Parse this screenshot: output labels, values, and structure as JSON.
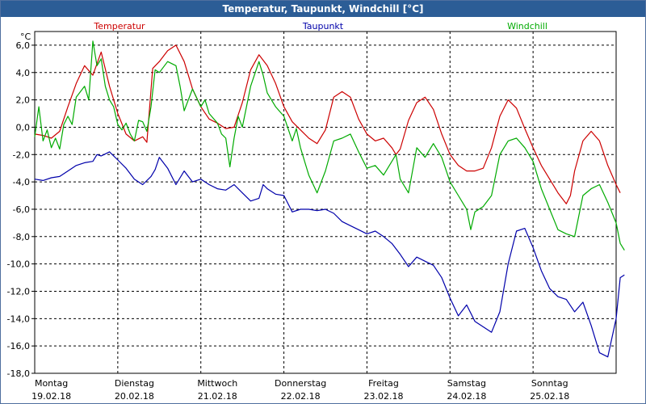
{
  "window": {
    "title": "Temperatur, Taupunkt, Windchill [°C]"
  },
  "chart_data": {
    "type": "line",
    "title": "Temperatur, Taupunkt, Windchill [°C]",
    "ylabel": "°C",
    "ylim": [
      -18,
      7
    ],
    "yticks": [
      -18,
      -16,
      -14,
      -12,
      -10,
      -8,
      -6,
      -4,
      -2,
      0,
      2,
      4,
      6
    ],
    "ytick_labels": [
      "-18,0",
      "-16,0",
      "-14,0",
      "-12,0",
      "-10,0",
      "-8,0",
      "-6,0",
      "-4,0",
      "-2,0",
      "0,0",
      "2,0",
      "4,0",
      "6,0"
    ],
    "xlim": [
      0,
      7
    ],
    "days": [
      {
        "day": "Montag",
        "date": "19.02.18"
      },
      {
        "day": "Dienstag",
        "date": "20.02.18"
      },
      {
        "day": "Mittwoch",
        "date": "21.02.18"
      },
      {
        "day": "Donnerstag",
        "date": "22.02.18"
      },
      {
        "day": "Freitag",
        "date": "23.02.18"
      },
      {
        "day": "Samstag",
        "date": "24.02.18"
      },
      {
        "day": "Sonntag",
        "date": "25.02.18"
      }
    ],
    "grid": true,
    "series": [
      {
        "name": "Temperatur",
        "color": "#cc0000",
        "points": [
          [
            0,
            -0.5
          ],
          [
            0.1,
            -0.6
          ],
          [
            0.2,
            -0.8
          ],
          [
            0.3,
            -0.3
          ],
          [
            0.4,
            1.5
          ],
          [
            0.5,
            3.2
          ],
          [
            0.6,
            4.5
          ],
          [
            0.7,
            3.8
          ],
          [
            0.8,
            5.5
          ],
          [
            0.9,
            3.0
          ],
          [
            1.0,
            1.0
          ],
          [
            1.1,
            -0.5
          ],
          [
            1.2,
            -1.0
          ],
          [
            1.3,
            -0.7
          ],
          [
            1.35,
            -1.1
          ],
          [
            1.42,
            4.3
          ],
          [
            1.5,
            4.8
          ],
          [
            1.6,
            5.6
          ],
          [
            1.7,
            6.0
          ],
          [
            1.8,
            4.8
          ],
          [
            1.9,
            2.8
          ],
          [
            2.0,
            1.5
          ],
          [
            2.1,
            0.6
          ],
          [
            2.2,
            0.3
          ],
          [
            2.25,
            0.1
          ],
          [
            2.3,
            -0.1
          ],
          [
            2.4,
            0.0
          ],
          [
            2.5,
            1.8
          ],
          [
            2.6,
            4.2
          ],
          [
            2.7,
            5.3
          ],
          [
            2.8,
            4.5
          ],
          [
            2.9,
            3.2
          ],
          [
            3.0,
            1.5
          ],
          [
            3.1,
            0.4
          ],
          [
            3.2,
            -0.2
          ],
          [
            3.3,
            -0.8
          ],
          [
            3.4,
            -1.2
          ],
          [
            3.5,
            -0.2
          ],
          [
            3.6,
            2.2
          ],
          [
            3.7,
            2.6
          ],
          [
            3.8,
            2.2
          ],
          [
            3.9,
            0.6
          ],
          [
            4.0,
            -0.5
          ],
          [
            4.1,
            -1.0
          ],
          [
            4.2,
            -0.8
          ],
          [
            4.3,
            -1.5
          ],
          [
            4.35,
            -2.0
          ],
          [
            4.4,
            -1.6
          ],
          [
            4.5,
            0.5
          ],
          [
            4.6,
            1.8
          ],
          [
            4.7,
            2.2
          ],
          [
            4.8,
            1.3
          ],
          [
            4.9,
            -0.5
          ],
          [
            5.0,
            -2.0
          ],
          [
            5.1,
            -2.8
          ],
          [
            5.2,
            -3.2
          ],
          [
            5.3,
            -3.2
          ],
          [
            5.4,
            -3.0
          ],
          [
            5.5,
            -1.5
          ],
          [
            5.6,
            0.8
          ],
          [
            5.7,
            2.0
          ],
          [
            5.8,
            1.4
          ],
          [
            5.9,
            -0.1
          ],
          [
            6.0,
            -1.5
          ],
          [
            6.1,
            -2.8
          ],
          [
            6.2,
            -3.8
          ],
          [
            6.3,
            -4.8
          ],
          [
            6.4,
            -5.6
          ],
          [
            6.45,
            -5.0
          ],
          [
            6.5,
            -3.2
          ],
          [
            6.6,
            -1.0
          ],
          [
            6.7,
            -0.3
          ],
          [
            6.8,
            -1.0
          ],
          [
            6.9,
            -2.8
          ],
          [
            7.0,
            -4.2
          ],
          [
            7.05,
            -4.8
          ]
        ]
      },
      {
        "name": "Taupunkt",
        "color": "#0000aa",
        "points": [
          [
            0,
            -3.8
          ],
          [
            0.1,
            -3.9
          ],
          [
            0.2,
            -3.7
          ],
          [
            0.3,
            -3.6
          ],
          [
            0.4,
            -3.2
          ],
          [
            0.5,
            -2.8
          ],
          [
            0.6,
            -2.6
          ],
          [
            0.7,
            -2.5
          ],
          [
            0.75,
            -2.0
          ],
          [
            0.8,
            -2.1
          ],
          [
            0.9,
            -1.8
          ],
          [
            1.0,
            -2.4
          ],
          [
            1.1,
            -3.0
          ],
          [
            1.2,
            -3.8
          ],
          [
            1.3,
            -4.2
          ],
          [
            1.4,
            -3.6
          ],
          [
            1.45,
            -3.1
          ],
          [
            1.5,
            -2.2
          ],
          [
            1.6,
            -3.0
          ],
          [
            1.7,
            -4.2
          ],
          [
            1.8,
            -3.2
          ],
          [
            1.9,
            -4.0
          ],
          [
            2.0,
            -3.8
          ],
          [
            2.1,
            -4.2
          ],
          [
            2.2,
            -4.5
          ],
          [
            2.3,
            -4.6
          ],
          [
            2.4,
            -4.2
          ],
          [
            2.5,
            -4.8
          ],
          [
            2.6,
            -5.4
          ],
          [
            2.7,
            -5.2
          ],
          [
            2.75,
            -4.2
          ],
          [
            2.8,
            -4.5
          ],
          [
            2.9,
            -4.9
          ],
          [
            3.0,
            -5.0
          ],
          [
            3.1,
            -6.2
          ],
          [
            3.2,
            -6.0
          ],
          [
            3.3,
            -6.0
          ],
          [
            3.4,
            -6.1
          ],
          [
            3.5,
            -6.0
          ],
          [
            3.6,
            -6.3
          ],
          [
            3.7,
            -6.9
          ],
          [
            3.8,
            -7.2
          ],
          [
            3.9,
            -7.5
          ],
          [
            4.0,
            -7.8
          ],
          [
            4.1,
            -7.6
          ],
          [
            4.2,
            -8.0
          ],
          [
            4.3,
            -8.5
          ],
          [
            4.4,
            -9.3
          ],
          [
            4.5,
            -10.2
          ],
          [
            4.6,
            -9.5
          ],
          [
            4.7,
            -9.8
          ],
          [
            4.8,
            -10.1
          ],
          [
            4.9,
            -11.0
          ],
          [
            5.0,
            -12.5
          ],
          [
            5.1,
            -13.8
          ],
          [
            5.2,
            -13.0
          ],
          [
            5.3,
            -14.2
          ],
          [
            5.4,
            -14.6
          ],
          [
            5.5,
            -15.0
          ],
          [
            5.6,
            -13.5
          ],
          [
            5.7,
            -10.0
          ],
          [
            5.8,
            -7.6
          ],
          [
            5.9,
            -7.4
          ],
          [
            6.0,
            -8.8
          ],
          [
            6.1,
            -10.5
          ],
          [
            6.2,
            -11.8
          ],
          [
            6.3,
            -12.4
          ],
          [
            6.4,
            -12.6
          ],
          [
            6.5,
            -13.5
          ],
          [
            6.6,
            -12.8
          ],
          [
            6.7,
            -14.5
          ],
          [
            6.8,
            -16.5
          ],
          [
            6.9,
            -16.8
          ],
          [
            7.0,
            -14.0
          ],
          [
            7.05,
            -11.0
          ],
          [
            7.1,
            -10.8
          ]
        ]
      },
      {
        "name": "Windchill",
        "color": "#00aa00",
        "points": [
          [
            0,
            -0.7
          ],
          [
            0.05,
            1.5
          ],
          [
            0.1,
            -1.0
          ],
          [
            0.15,
            -0.2
          ],
          [
            0.2,
            -1.5
          ],
          [
            0.25,
            -0.8
          ],
          [
            0.3,
            -1.6
          ],
          [
            0.35,
            0.2
          ],
          [
            0.4,
            0.8
          ],
          [
            0.45,
            0.2
          ],
          [
            0.5,
            2.2
          ],
          [
            0.6,
            3.0
          ],
          [
            0.65,
            2.0
          ],
          [
            0.7,
            6.3
          ],
          [
            0.75,
            4.5
          ],
          [
            0.8,
            5.0
          ],
          [
            0.85,
            3.0
          ],
          [
            0.9,
            2.0
          ],
          [
            0.95,
            1.5
          ],
          [
            1.0,
            0.2
          ],
          [
            1.05,
            -0.2
          ],
          [
            1.1,
            0.3
          ],
          [
            1.15,
            -0.5
          ],
          [
            1.2,
            -1.0
          ],
          [
            1.25,
            0.5
          ],
          [
            1.3,
            0.4
          ],
          [
            1.35,
            -0.3
          ],
          [
            1.4,
            1.5
          ],
          [
            1.45,
            4.2
          ],
          [
            1.5,
            4.0
          ],
          [
            1.6,
            4.8
          ],
          [
            1.7,
            4.5
          ],
          [
            1.75,
            3.0
          ],
          [
            1.8,
            1.2
          ],
          [
            1.9,
            2.8
          ],
          [
            2.0,
            1.5
          ],
          [
            2.05,
            2.0
          ],
          [
            2.1,
            1.0
          ],
          [
            2.2,
            0.3
          ],
          [
            2.25,
            -0.5
          ],
          [
            2.3,
            -0.8
          ],
          [
            2.35,
            -2.9
          ],
          [
            2.4,
            -0.8
          ],
          [
            2.45,
            0.8
          ],
          [
            2.5,
            0.0
          ],
          [
            2.6,
            3.0
          ],
          [
            2.7,
            4.8
          ],
          [
            2.75,
            3.8
          ],
          [
            2.8,
            2.5
          ],
          [
            2.9,
            1.5
          ],
          [
            3.0,
            0.8
          ],
          [
            3.1,
            -1.0
          ],
          [
            3.15,
            -0.1
          ],
          [
            3.2,
            -1.5
          ],
          [
            3.3,
            -3.5
          ],
          [
            3.4,
            -4.8
          ],
          [
            3.5,
            -3.2
          ],
          [
            3.6,
            -1.0
          ],
          [
            3.7,
            -0.8
          ],
          [
            3.8,
            -0.5
          ],
          [
            3.9,
            -1.8
          ],
          [
            4.0,
            -3.0
          ],
          [
            4.1,
            -2.8
          ],
          [
            4.2,
            -3.5
          ],
          [
            4.3,
            -2.5
          ],
          [
            4.35,
            -2.0
          ],
          [
            4.4,
            -3.8
          ],
          [
            4.5,
            -4.8
          ],
          [
            4.6,
            -1.5
          ],
          [
            4.7,
            -2.2
          ],
          [
            4.8,
            -1.2
          ],
          [
            4.9,
            -2.2
          ],
          [
            5.0,
            -4.0
          ],
          [
            5.1,
            -5.0
          ],
          [
            5.2,
            -6.0
          ],
          [
            5.25,
            -7.5
          ],
          [
            5.3,
            -6.2
          ],
          [
            5.4,
            -5.8
          ],
          [
            5.5,
            -5.0
          ],
          [
            5.6,
            -2.0
          ],
          [
            5.7,
            -1.0
          ],
          [
            5.8,
            -0.8
          ],
          [
            5.9,
            -1.5
          ],
          [
            6.0,
            -2.5
          ],
          [
            6.1,
            -4.5
          ],
          [
            6.2,
            -6.0
          ],
          [
            6.3,
            -7.5
          ],
          [
            6.4,
            -7.8
          ],
          [
            6.5,
            -8.0
          ],
          [
            6.6,
            -5.0
          ],
          [
            6.7,
            -4.5
          ],
          [
            6.8,
            -4.2
          ],
          [
            6.9,
            -5.5
          ],
          [
            7.0,
            -7.0
          ],
          [
            7.05,
            -8.5
          ],
          [
            7.1,
            -9.0
          ]
        ]
      }
    ]
  }
}
